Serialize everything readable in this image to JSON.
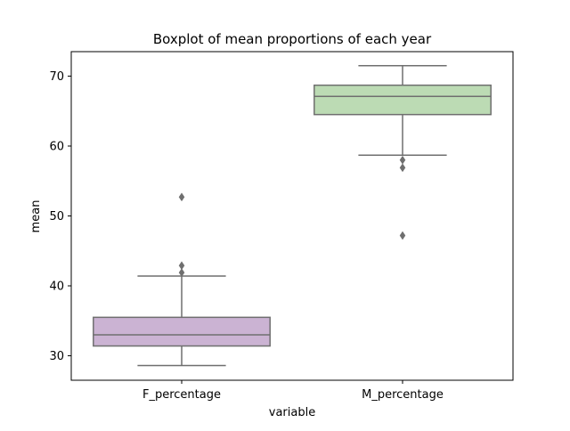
{
  "chart_data": {
    "type": "box",
    "title": "Boxplot of mean proportions of each year",
    "xlabel": "variable",
    "ylabel": "mean",
    "ylim": [
      26.5,
      73.5
    ],
    "yticks": [
      30,
      40,
      50,
      60,
      70
    ],
    "categories": [
      "F_percentage",
      "M_percentage"
    ],
    "boxes": [
      {
        "category": "F_percentage",
        "color": "#cbb3d3",
        "whisker_low": 28.6,
        "q1": 31.4,
        "median": 33.0,
        "q3": 35.5,
        "whisker_high": 41.4,
        "outliers": [
          41.9,
          42.9,
          52.7
        ]
      },
      {
        "category": "M_percentage",
        "color": "#bcdbb4",
        "whisker_low": 58.7,
        "q1": 64.5,
        "median": 67.1,
        "q3": 68.7,
        "whisker_high": 71.5,
        "outliers": [
          58.0,
          56.9,
          47.2
        ]
      }
    ],
    "edge_color": "#6f6f6f",
    "grid": false,
    "legend": "none"
  }
}
